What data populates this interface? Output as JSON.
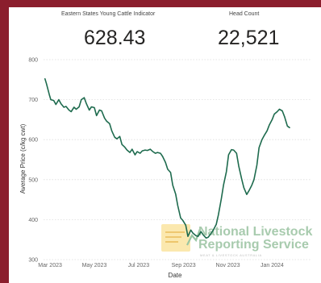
{
  "kpis": {
    "indicator": {
      "label": "Eastern States Young Cattle Indicator",
      "value": "628.43"
    },
    "head_count": {
      "label": "Head Count",
      "value": "22,521"
    }
  },
  "watermark": {
    "line1": "National Livestock",
    "line2": "Reporting Service",
    "line3": "MEAT & LIVESTOCK AUSTRALIA"
  },
  "colors": {
    "line": "#1e6b4e",
    "frame": "#8b1e2d",
    "grid": "#dddddd"
  },
  "chart_data": {
    "type": "line",
    "xlabel": "Date",
    "ylabel": "Average Price (c/kg cwt)",
    "ylim": [
      300,
      800
    ],
    "yticks": [
      300,
      400,
      500,
      600,
      700,
      800
    ],
    "xlim": [
      "2023-02-20",
      "2024-02-24"
    ],
    "xticks": [
      {
        "date": "2023-03-01",
        "label": "Mar 2023"
      },
      {
        "date": "2023-05-01",
        "label": "May 2023"
      },
      {
        "date": "2023-07-01",
        "label": "Jul 2023"
      },
      {
        "date": "2023-09-01",
        "label": "Sep 2023"
      },
      {
        "date": "2023-11-01",
        "label": "Nov 2023"
      },
      {
        "date": "2024-01-01",
        "label": "Jan 2024"
      }
    ],
    "grid": "horizontal",
    "series": [
      {
        "points": [
          [
            "2023-02-22",
            752
          ],
          [
            "2023-02-24",
            740
          ],
          [
            "2023-02-28",
            712
          ],
          [
            "2023-03-02",
            700
          ],
          [
            "2023-03-06",
            698
          ],
          [
            "2023-03-09",
            688
          ],
          [
            "2023-03-13",
            700
          ],
          [
            "2023-03-16",
            690
          ],
          [
            "2023-03-20",
            681
          ],
          [
            "2023-03-23",
            683
          ],
          [
            "2023-03-27",
            674
          ],
          [
            "2023-03-30",
            670
          ],
          [
            "2023-04-03",
            681
          ],
          [
            "2023-04-06",
            676
          ],
          [
            "2023-04-10",
            682
          ],
          [
            "2023-04-13",
            700
          ],
          [
            "2023-04-17",
            705
          ],
          [
            "2023-04-20",
            690
          ],
          [
            "2023-04-24",
            674
          ],
          [
            "2023-04-27",
            682
          ],
          [
            "2023-05-01",
            680
          ],
          [
            "2023-05-04",
            660
          ],
          [
            "2023-05-08",
            674
          ],
          [
            "2023-05-11",
            672
          ],
          [
            "2023-05-15",
            654
          ],
          [
            "2023-05-18",
            646
          ],
          [
            "2023-05-22",
            640
          ],
          [
            "2023-05-25",
            622
          ],
          [
            "2023-05-29",
            606
          ],
          [
            "2023-06-01",
            602
          ],
          [
            "2023-06-05",
            608
          ],
          [
            "2023-06-08",
            588
          ],
          [
            "2023-06-12",
            581
          ],
          [
            "2023-06-15",
            574
          ],
          [
            "2023-06-19",
            568
          ],
          [
            "2023-06-22",
            576
          ],
          [
            "2023-06-26",
            562
          ],
          [
            "2023-06-29",
            570
          ],
          [
            "2023-07-03",
            566
          ],
          [
            "2023-07-06",
            572
          ],
          [
            "2023-07-10",
            574
          ],
          [
            "2023-07-13",
            573
          ],
          [
            "2023-07-17",
            576
          ],
          [
            "2023-07-20",
            571
          ],
          [
            "2023-07-24",
            566
          ],
          [
            "2023-07-27",
            568
          ],
          [
            "2023-07-31",
            566
          ],
          [
            "2023-08-03",
            558
          ],
          [
            "2023-08-07",
            543
          ],
          [
            "2023-08-10",
            526
          ],
          [
            "2023-08-14",
            518
          ],
          [
            "2023-08-17",
            486
          ],
          [
            "2023-08-21",
            464
          ],
          [
            "2023-08-24",
            435
          ],
          [
            "2023-08-28",
            404
          ],
          [
            "2023-08-31",
            398
          ],
          [
            "2023-09-04",
            386
          ],
          [
            "2023-09-07",
            358
          ],
          [
            "2023-09-11",
            374
          ],
          [
            "2023-09-14",
            366
          ],
          [
            "2023-09-18",
            360
          ],
          [
            "2023-09-21",
            358
          ],
          [
            "2023-09-25",
            370
          ],
          [
            "2023-09-28",
            362
          ],
          [
            "2023-10-02",
            354
          ],
          [
            "2023-10-05",
            356
          ],
          [
            "2023-10-09",
            366
          ],
          [
            "2023-10-12",
            374
          ],
          [
            "2023-10-16",
            388
          ],
          [
            "2023-10-19",
            412
          ],
          [
            "2023-10-23",
            452
          ],
          [
            "2023-10-26",
            486
          ],
          [
            "2023-10-30",
            520
          ],
          [
            "2023-11-02",
            562
          ],
          [
            "2023-11-06",
            575
          ],
          [
            "2023-11-09",
            574
          ],
          [
            "2023-11-13",
            566
          ],
          [
            "2023-11-16",
            534
          ],
          [
            "2023-11-20",
            502
          ],
          [
            "2023-11-23",
            480
          ],
          [
            "2023-11-27",
            463
          ],
          [
            "2023-11-30",
            472
          ],
          [
            "2023-12-04",
            486
          ],
          [
            "2023-12-07",
            500
          ],
          [
            "2023-12-11",
            536
          ],
          [
            "2023-12-14",
            580
          ],
          [
            "2023-12-18",
            600
          ],
          [
            "2023-12-21",
            610
          ],
          [
            "2023-12-25",
            622
          ],
          [
            "2023-12-28",
            636
          ],
          [
            "2024-01-01",
            650
          ],
          [
            "2024-01-04",
            664
          ],
          [
            "2024-01-08",
            670
          ],
          [
            "2024-01-11",
            676
          ],
          [
            "2024-01-15",
            672
          ],
          [
            "2024-01-18",
            658
          ],
          [
            "2024-01-22",
            634
          ],
          [
            "2024-01-25",
            630
          ]
        ]
      }
    ]
  }
}
